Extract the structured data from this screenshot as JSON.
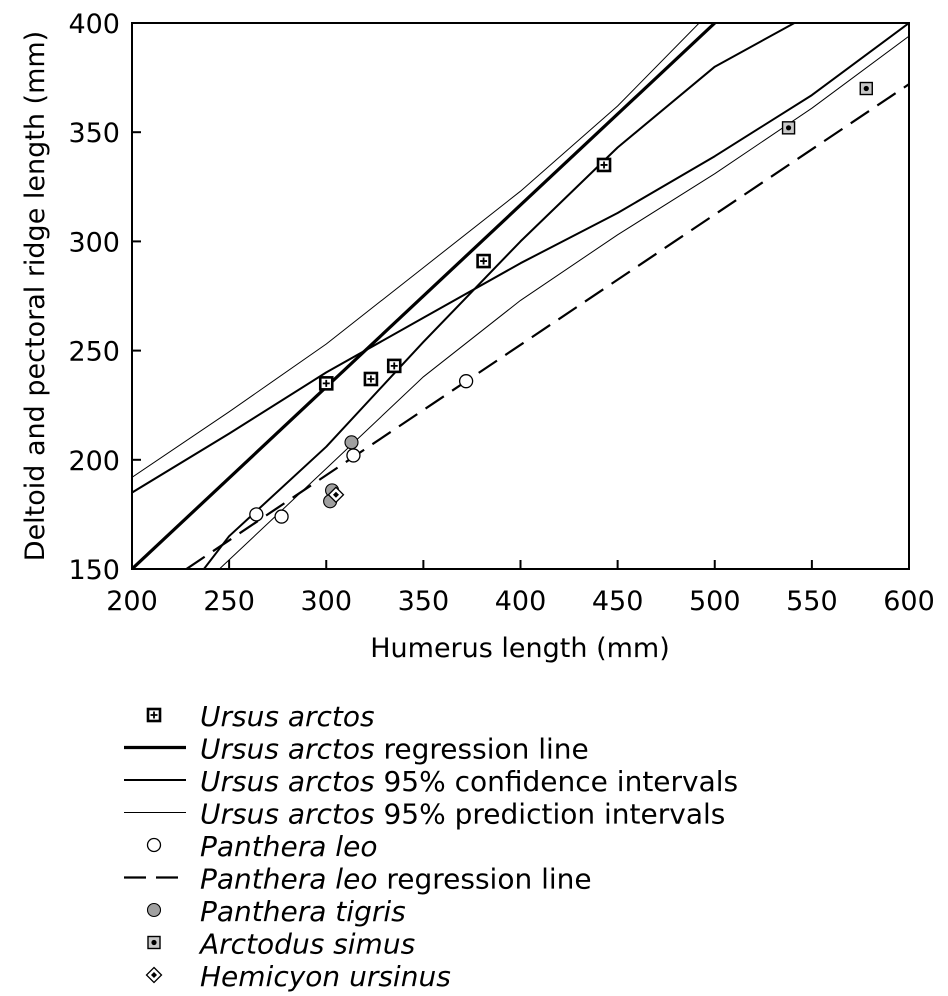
{
  "chart_data": {
    "type": "scatter",
    "xlabel": "Humerus length (mm)",
    "ylabel": "Deltoid and pectoral ridge length (mm)",
    "xlim": [
      200,
      600
    ],
    "ylim": [
      150,
      400
    ],
    "xticks": [
      "200",
      "250",
      "300",
      "350",
      "400",
      "450",
      "500",
      "550",
      "600"
    ],
    "yticks": [
      "150",
      "200",
      "250",
      "300",
      "350",
      "400"
    ],
    "grid": false,
    "legend_position": "bottom",
    "series": [
      {
        "name": "Ursus arctos",
        "kind": "points",
        "marker": "square-cross",
        "x": [
          300,
          323,
          335,
          381,
          443
        ],
        "y": [
          235,
          237,
          243,
          291,
          335
        ]
      },
      {
        "name": "Panthera leo",
        "kind": "points",
        "marker": "open-circle",
        "x": [
          264,
          277,
          314,
          372
        ],
        "y": [
          175,
          174,
          202,
          236
        ]
      },
      {
        "name": "Panthera tigris",
        "kind": "points",
        "marker": "gray-circle",
        "x": [
          313,
          303,
          302
        ],
        "y": [
          208,
          186,
          181
        ]
      },
      {
        "name": "Arctodus simus",
        "kind": "points",
        "marker": "square-dot",
        "x": [
          538,
          578
        ],
        "y": [
          352,
          370
        ]
      },
      {
        "name": "Hemicyon ursinus",
        "kind": "points",
        "marker": "diamond",
        "x": [
          305
        ],
        "y": [
          184
        ]
      },
      {
        "name": "Ursus arctos regression line",
        "kind": "line",
        "style": "regression",
        "x": [
          200,
          500
        ],
        "y": [
          150,
          400
        ]
      },
      {
        "name": "Ursus arctos 95% confidence intervals",
        "kind": "line",
        "style": "confidence",
        "x": [
          200,
          250,
          300,
          350,
          400,
          450,
          500,
          550,
          600
        ],
        "y": [
          185,
          212,
          240,
          265,
          290,
          313,
          339,
          367,
          400
        ]
      },
      {
        "name": "Ursus arctos 95% confidence intervals",
        "kind": "line",
        "style": "confidence",
        "x": [
          237,
          250,
          300,
          350,
          400,
          450,
          500,
          541
        ],
        "y": [
          150,
          165,
          206,
          254,
          300,
          343,
          380,
          400
        ]
      },
      {
        "name": "Ursus arctos 95% prediction intervals",
        "kind": "line",
        "style": "prediction",
        "x": [
          200,
          250,
          300,
          350,
          400,
          450,
          492
        ],
        "y": [
          192,
          222,
          253,
          288,
          323,
          362,
          400
        ]
      },
      {
        "name": "Ursus arctos 95% prediction intervals",
        "kind": "line",
        "style": "prediction",
        "x": [
          245,
          300,
          350,
          400,
          450,
          500,
          550,
          600
        ],
        "y": [
          150,
          196,
          238,
          273,
          303,
          331,
          361,
          394
        ]
      },
      {
        "name": "Panthera leo regression line",
        "kind": "line",
        "style": "dashed",
        "x": [
          228,
          600
        ],
        "y": [
          150,
          372
        ]
      }
    ]
  },
  "legend": [
    {
      "symbol": "square-cross",
      "italic": "Ursus arctos",
      "rest": ""
    },
    {
      "symbol": "line-thick",
      "italic": "Ursus arctos",
      "rest": " regression line"
    },
    {
      "symbol": "line-medium",
      "italic": "Ursus arctos",
      "rest": " 95% confidence intervals"
    },
    {
      "symbol": "line-thin",
      "italic": "Ursus arctos",
      "rest": " 95% prediction intervals"
    },
    {
      "symbol": "open-circle",
      "italic": "Panthera leo",
      "rest": ""
    },
    {
      "symbol": "line-dashed",
      "italic": "Panthera leo",
      "rest": " regression line"
    },
    {
      "symbol": "gray-circle",
      "italic": "Panthera tigris",
      "rest": ""
    },
    {
      "symbol": "square-dot",
      "italic": "Arctodus simus",
      "rest": ""
    },
    {
      "symbol": "diamond",
      "italic": "Hemicyon ursinus",
      "rest": ""
    }
  ],
  "colors": {
    "ink": "#000000",
    "tiger_fill": "#a0a0a0",
    "background": "#ffffff"
  }
}
